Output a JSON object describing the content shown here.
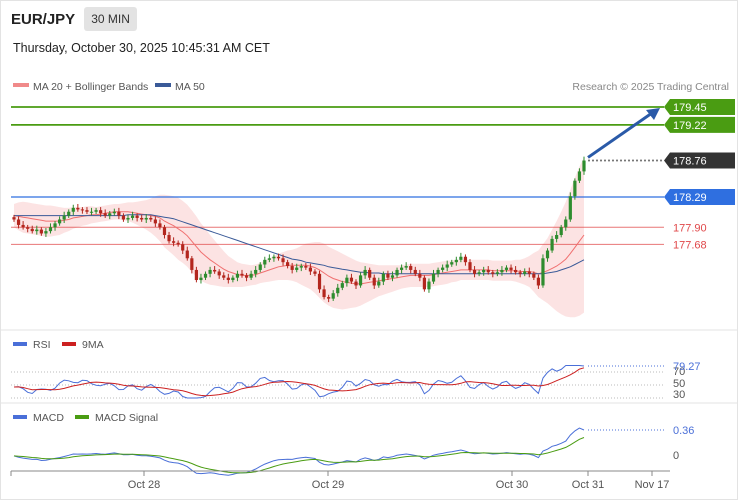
{
  "header": {
    "pair": "EUR/JPY",
    "timeframe": "30 MIN",
    "timestamp": "Thursday, October 30, 2025 10:45:31 AM CET"
  },
  "legend": {
    "ma20": "MA 20 + Bollinger Bands",
    "ma50": "MA 50",
    "credit": "Research © 2025 Trading Central"
  },
  "colors": {
    "green": "#4a9c12",
    "blue": "#2f6fe0",
    "red": "#e0484a",
    "arrow": "#2a5aa8",
    "candle_up": "#2e8c2e",
    "candle_down": "#b3261e",
    "band_fill": "#fbdede",
    "ma50": "#3a5a98",
    "rsi": "#4a6fd8",
    "rsi_ma": "#cc2020",
    "macd": "#4a6fd8",
    "macd_signal": "#4a9c12"
  },
  "chart_data": [
    {
      "type": "candlestick",
      "title": "EUR/JPY 30 MIN",
      "ylim": [
        177.05,
        179.55
      ],
      "x_ticks": [
        "Oct 28",
        "Oct 29",
        "Oct 30",
        "Oct 31",
        "Nov 17"
      ],
      "price_levels": [
        {
          "label": "179.45",
          "value": 179.45,
          "kind": "target"
        },
        {
          "label": "179.22",
          "value": 179.22,
          "kind": "target"
        },
        {
          "label": "178.76",
          "value": 178.76,
          "kind": "last"
        },
        {
          "label": "178.29",
          "value": 178.29,
          "kind": "pivot"
        },
        {
          "label": "177.90",
          "value": 177.9,
          "kind": "support"
        },
        {
          "label": "177.68",
          "value": 177.68,
          "kind": "support"
        }
      ],
      "closes": [
        178.0,
        177.93,
        177.9,
        177.88,
        177.85,
        177.87,
        177.82,
        177.85,
        177.9,
        177.95,
        178.0,
        178.05,
        178.1,
        178.15,
        178.13,
        178.12,
        178.1,
        178.1,
        178.12,
        178.08,
        178.05,
        178.08,
        178.1,
        178.05,
        178.0,
        178.02,
        178.05,
        178.02,
        178.0,
        178.02,
        178.0,
        177.95,
        177.9,
        177.8,
        177.72,
        177.7,
        177.68,
        177.6,
        177.5,
        177.35,
        177.22,
        177.25,
        177.3,
        177.35,
        177.33,
        177.28,
        177.25,
        177.22,
        177.25,
        177.3,
        177.28,
        177.25,
        177.3,
        177.35,
        177.42,
        177.48,
        177.5,
        177.52,
        177.5,
        177.45,
        177.4,
        177.35,
        177.38,
        177.4,
        177.38,
        177.33,
        177.3,
        177.1,
        177.0,
        176.98,
        177.05,
        177.12,
        177.18,
        177.25,
        177.2,
        177.15,
        177.28,
        177.35,
        177.25,
        177.15,
        177.2,
        177.3,
        177.25,
        177.28,
        177.35,
        177.38,
        177.4,
        177.35,
        177.3,
        177.25,
        177.1,
        177.2,
        177.3,
        177.35,
        177.38,
        177.42,
        177.45,
        177.48,
        177.52,
        177.45,
        177.35,
        177.3,
        177.32,
        177.35,
        177.32,
        177.3,
        177.32,
        177.35,
        177.38,
        177.35,
        177.32,
        177.3,
        177.33,
        177.3,
        177.25,
        177.15,
        177.5,
        177.6,
        177.75,
        177.8,
        177.9,
        178.0,
        178.3,
        178.5,
        178.62,
        178.76
      ],
      "ma20": [
        178.05,
        178.04,
        178.03,
        178.02,
        178.01,
        178.0,
        177.99,
        177.98,
        177.98,
        177.98,
        177.98,
        177.99,
        178.0,
        178.02,
        178.03,
        178.04,
        178.05,
        178.06,
        178.06,
        178.07,
        178.08,
        178.09,
        178.1,
        178.1,
        178.1,
        178.1,
        178.09,
        178.08,
        178.07,
        178.06,
        178.05,
        178.04,
        178.02,
        177.98,
        177.95,
        177.92,
        177.88,
        177.84,
        177.79,
        177.72,
        177.65,
        177.58,
        177.53,
        177.48,
        177.44,
        177.4,
        177.36,
        177.33,
        177.31,
        177.29,
        177.28,
        177.28,
        177.28,
        177.29,
        177.31,
        177.33,
        177.35,
        177.37,
        177.39,
        177.4,
        177.41,
        177.41,
        177.41,
        177.41,
        177.41,
        177.4,
        177.38,
        177.35,
        177.31,
        177.27,
        177.24,
        177.22,
        177.2,
        177.19,
        177.18,
        177.17,
        177.17,
        177.18,
        177.19,
        177.2,
        177.21,
        177.22,
        177.23,
        177.24,
        177.25,
        177.26,
        177.27,
        177.28,
        177.28,
        177.28,
        177.28,
        177.28,
        177.29,
        177.3,
        177.31,
        177.32,
        177.33,
        177.34,
        177.35,
        177.35,
        177.35,
        177.35,
        177.35,
        177.35,
        177.35,
        177.34,
        177.34,
        177.34,
        177.34,
        177.34,
        177.34,
        177.33,
        177.33,
        177.33,
        177.32,
        177.3,
        177.32,
        177.34,
        177.37,
        177.4,
        177.44,
        177.49,
        177.56,
        177.64,
        177.72,
        177.8
      ],
      "ma50": [
        178.05,
        178.05,
        178.05,
        178.05,
        178.05,
        178.05,
        178.05,
        178.05,
        178.05,
        178.05,
        178.05,
        178.05,
        178.05,
        178.05,
        178.05,
        178.05,
        178.05,
        178.05,
        178.05,
        178.05,
        178.05,
        178.05,
        178.05,
        178.05,
        178.05,
        178.06,
        178.06,
        178.06,
        178.06,
        178.06,
        178.06,
        178.05,
        178.04,
        178.03,
        178.02,
        178.01,
        177.99,
        177.97,
        177.95,
        177.93,
        177.91,
        177.89,
        177.87,
        177.85,
        177.83,
        177.81,
        177.79,
        177.77,
        177.75,
        177.73,
        177.71,
        177.69,
        177.67,
        177.65,
        177.63,
        177.61,
        177.59,
        177.57,
        177.55,
        177.53,
        177.51,
        177.49,
        177.48,
        177.47,
        177.45,
        177.44,
        177.43,
        177.42,
        177.41,
        177.39,
        177.38,
        177.37,
        177.36,
        177.35,
        177.34,
        177.33,
        177.32,
        177.32,
        177.31,
        177.31,
        177.31,
        177.3,
        177.3,
        177.3,
        177.3,
        177.3,
        177.3,
        177.3,
        177.3,
        177.3,
        177.3,
        177.3,
        177.3,
        177.3,
        177.3,
        177.3,
        177.3,
        177.3,
        177.3,
        177.3,
        177.3,
        177.3,
        177.3,
        177.3,
        177.3,
        177.3,
        177.3,
        177.3,
        177.3,
        177.3,
        177.3,
        177.3,
        177.3,
        177.3,
        177.3,
        177.3,
        177.3,
        177.31,
        177.32,
        177.33,
        177.35,
        177.37,
        177.39,
        177.42,
        177.45,
        177.48
      ],
      "band_half_width": [
        0.15,
        0.18,
        0.2,
        0.2,
        0.2,
        0.2,
        0.2,
        0.2,
        0.2,
        0.19,
        0.18,
        0.16,
        0.15,
        0.14,
        0.13,
        0.12,
        0.12,
        0.11,
        0.1,
        0.1,
        0.1,
        0.1,
        0.1,
        0.1,
        0.11,
        0.12,
        0.13,
        0.15,
        0.17,
        0.19,
        0.22,
        0.26,
        0.3,
        0.34,
        0.36,
        0.38,
        0.4,
        0.4,
        0.4,
        0.4,
        0.39,
        0.37,
        0.35,
        0.32,
        0.29,
        0.26,
        0.23,
        0.2,
        0.18,
        0.16,
        0.15,
        0.14,
        0.13,
        0.13,
        0.13,
        0.14,
        0.15,
        0.16,
        0.17,
        0.18,
        0.19,
        0.2,
        0.22,
        0.25,
        0.28,
        0.3,
        0.33,
        0.36,
        0.38,
        0.38,
        0.38,
        0.37,
        0.36,
        0.34,
        0.32,
        0.3,
        0.28,
        0.26,
        0.24,
        0.22,
        0.2,
        0.19,
        0.18,
        0.17,
        0.16,
        0.15,
        0.15,
        0.15,
        0.15,
        0.15,
        0.15,
        0.15,
        0.15,
        0.15,
        0.15,
        0.15,
        0.14,
        0.14,
        0.13,
        0.13,
        0.13,
        0.13,
        0.13,
        0.13,
        0.13,
        0.13,
        0.13,
        0.13,
        0.13,
        0.13,
        0.14,
        0.15,
        0.17,
        0.2,
        0.25,
        0.3,
        0.36,
        0.42,
        0.5,
        0.58,
        0.66,
        0.74,
        0.82,
        0.9,
        0.96,
        1.0
      ],
      "arrow": {
        "from_value": 178.8,
        "to_value": 179.45
      }
    },
    {
      "type": "line",
      "title": "RSI",
      "series": [
        {
          "name": "RSI"
        },
        {
          "name": "9MA"
        }
      ],
      "ylim": [
        20,
        85
      ],
      "levels": [
        70,
        50,
        30
      ],
      "last_value_label": "79.27",
      "last_value": 79.27
    },
    {
      "type": "line",
      "title": "MACD",
      "series": [
        {
          "name": "MACD"
        },
        {
          "name": "MACD Signal"
        }
      ],
      "levels": [
        0
      ],
      "last_value_label": "0.36",
      "last_value": 0.36
    }
  ],
  "panels": {
    "rsi": {
      "legend_rsi": "RSI",
      "legend_ma": "9MA",
      "l70": "70",
      "l50": "50",
      "l30": "30"
    },
    "macd": {
      "legend_macd": "MACD",
      "legend_signal": "MACD Signal",
      "zero": "0"
    }
  }
}
